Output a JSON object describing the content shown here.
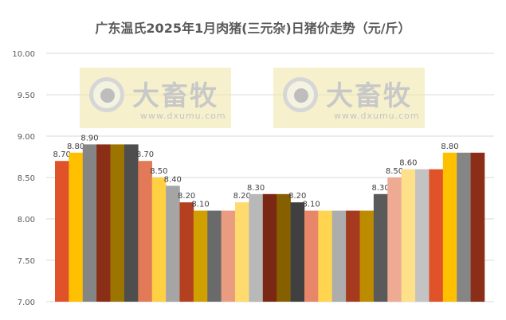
{
  "chart_data": {
    "type": "bar",
    "title": "广东温氏2025年1月肉猪(三元杂)日猪价走势（元/斤）",
    "xlabel": "",
    "ylabel": "",
    "ylim": [
      7.0,
      10.0
    ],
    "yticks": [
      "7.00",
      "7.50",
      "8.00",
      "8.50",
      "9.00",
      "9.50",
      "10.00"
    ],
    "grid": true,
    "values": [
      8.7,
      8.8,
      8.9,
      8.9,
      8.9,
      8.9,
      8.7,
      8.5,
      8.4,
      8.2,
      8.1,
      8.1,
      8.1,
      8.2,
      8.3,
      8.3,
      8.3,
      8.2,
      8.1,
      8.1,
      8.1,
      8.1,
      8.1,
      8.3,
      8.5,
      8.6,
      8.6,
      8.6,
      8.8,
      8.8,
      8.8
    ],
    "data_labels": [
      "8.70",
      "8.80",
      "8.90",
      null,
      null,
      null,
      "8.70",
      "8.50",
      "8.40",
      "8.20",
      "8.10",
      null,
      null,
      "8.20",
      "8.30",
      null,
      null,
      "8.20",
      "8.10",
      null,
      null,
      null,
      null,
      "8.30",
      "8.50",
      "8.60",
      null,
      null,
      "8.80",
      null,
      null
    ],
    "colors": [
      "#E0532A",
      "#FFC000",
      "#858585",
      "#8A2E17",
      "#9C7500",
      "#4E4E4E",
      "#E27A58",
      "#FFD042",
      "#A5A5A5",
      "#B5401F",
      "#D0A000",
      "#6A6A6A",
      "#EA9C80",
      "#FFDA6E",
      "#B8B8B8",
      "#7A2813",
      "#866000",
      "#404040",
      "#E8866A",
      "#FFD550",
      "#ADADAD",
      "#A63A1E",
      "#BC8B00",
      "#5A5A5A",
      "#EEAA92",
      "#FFE08A",
      "#C3C3C3",
      "#E0532A",
      "#FFC000",
      "#858585",
      "#8A2E17"
    ]
  },
  "watermark": {
    "brand": "大畜牧",
    "url": "www.dxumu.com"
  }
}
